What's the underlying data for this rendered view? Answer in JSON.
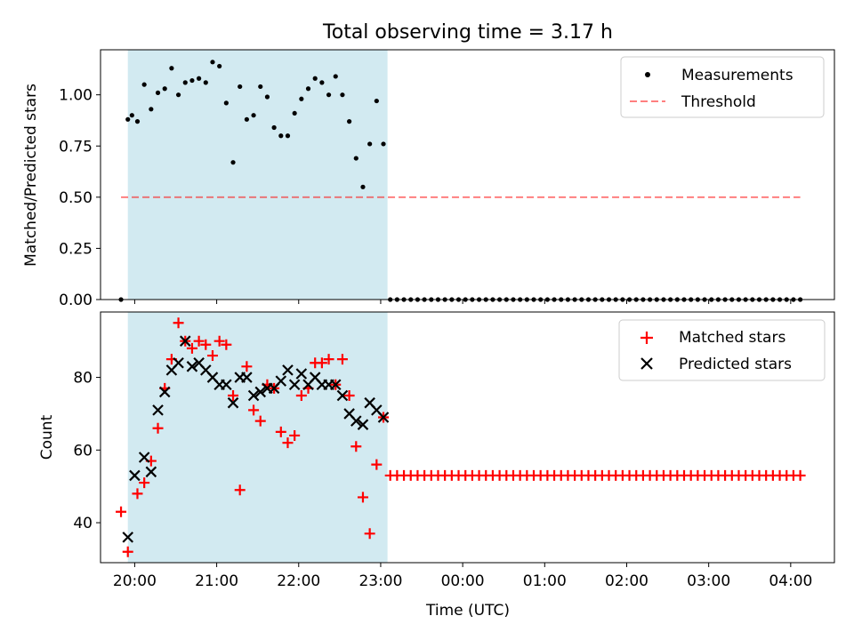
{
  "chart_data": [
    {
      "type": "scatter",
      "title": "Total observing time = 3.17 h",
      "xlabel": "",
      "ylabel": "Matched/Predicted stars",
      "xlim": [
        "19:35",
        "04:32"
      ],
      "ylim": [
        0.0,
        1.22
      ],
      "yticks": [
        "0.00",
        "0.25",
        "0.50",
        "0.75",
        "1.00"
      ],
      "yticks_values": [
        0.0,
        0.25,
        0.5,
        0.75,
        1.0
      ],
      "grid": false,
      "legend_position": "upper right",
      "shaded_region": {
        "x_start": "19:55",
        "x_end": "23:05",
        "color": "#add8e6"
      },
      "series": [
        {
          "name": "Measurements",
          "marker": "dot",
          "color": "#000000",
          "x": [
            "19:50",
            "19:55",
            "19:58",
            "20:02",
            "20:07",
            "20:12",
            "20:17",
            "20:22",
            "20:27",
            "20:32",
            "20:37",
            "20:42",
            "20:47",
            "20:52",
            "20:57",
            "21:02",
            "21:07",
            "21:12",
            "21:17",
            "21:22",
            "21:27",
            "21:32",
            "21:37",
            "21:42",
            "21:47",
            "21:52",
            "21:57",
            "22:02",
            "22:07",
            "22:12",
            "22:17",
            "22:22",
            "22:27",
            "22:32",
            "22:37",
            "22:42",
            "22:47",
            "22:52",
            "22:57",
            "23:02",
            "23:07"
          ],
          "y": [
            0.0,
            0.88,
            0.9,
            0.87,
            1.05,
            0.93,
            1.01,
            1.03,
            1.13,
            1.0,
            1.06,
            1.07,
            1.08,
            1.06,
            1.16,
            1.14,
            0.96,
            0.67,
            1.04,
            0.88,
            0.9,
            1.04,
            0.99,
            0.84,
            0.8,
            0.8,
            0.91,
            0.98,
            1.03,
            1.08,
            1.06,
            1.0,
            1.09,
            1.0,
            0.87,
            0.69,
            0.55,
            0.76,
            0.97,
            0.76,
            0.0
          ]
        },
        {
          "name": "Measurements (zero after 23:07)",
          "legend": false,
          "marker": "dot",
          "color": "#000000",
          "x_start": "23:12",
          "x_end": "04:07",
          "x_step_min": 5,
          "y_constant": 0.0
        },
        {
          "name": "Threshold",
          "style": "dashed",
          "color": "#ff0000",
          "alpha": 0.5,
          "x": [
            "19:50",
            "04:07"
          ],
          "y": [
            0.5,
            0.5
          ]
        }
      ]
    },
    {
      "type": "scatter",
      "title": "",
      "xlabel": "Time (UTC)",
      "ylabel": "Count",
      "xlim": [
        "19:35",
        "04:32"
      ],
      "ylim": [
        29,
        98
      ],
      "yticks": [
        "40",
        "60",
        "80"
      ],
      "yticks_values": [
        40,
        60,
        80
      ],
      "xticks": [
        "20:00",
        "21:00",
        "22:00",
        "23:00",
        "00:00",
        "01:00",
        "02:00",
        "03:00",
        "04:00"
      ],
      "grid": false,
      "legend_position": "upper right",
      "shaded_region": {
        "x_start": "19:55",
        "x_end": "23:05",
        "color": "#add8e6"
      },
      "series": [
        {
          "name": "Matched stars",
          "marker": "+",
          "color": "#ff0000",
          "x": [
            "19:50",
            "19:55",
            "20:02",
            "20:07",
            "20:12",
            "20:17",
            "20:22",
            "20:27",
            "20:32",
            "20:37",
            "20:42",
            "20:47",
            "20:52",
            "20:57",
            "21:02",
            "21:07",
            "21:12",
            "21:17",
            "21:22",
            "21:27",
            "21:32",
            "21:37",
            "21:42",
            "21:47",
            "21:52",
            "21:57",
            "22:02",
            "22:07",
            "22:12",
            "22:17",
            "22:22",
            "22:27",
            "22:32",
            "22:37",
            "22:42",
            "22:47",
            "22:52",
            "22:57",
            "23:02",
            "23:07"
          ],
          "y": [
            43,
            32,
            48,
            51,
            57,
            66,
            77,
            85,
            95,
            90,
            88,
            90,
            89,
            86,
            90,
            89,
            75,
            49,
            83,
            71,
            68,
            78,
            77,
            65,
            62,
            64,
            75,
            77,
            84,
            84,
            85,
            78,
            85,
            75,
            61,
            47,
            37,
            56,
            69,
            53
          ]
        },
        {
          "name": "Matched stars (constant after 23:07)",
          "legend": false,
          "marker": "+",
          "color": "#ff0000",
          "x_start": "23:12",
          "x_end": "04:07",
          "x_step_min": 5,
          "y_constant": 53
        },
        {
          "name": "Predicted stars",
          "marker": "x",
          "color": "#000000",
          "x": [
            "19:55",
            "20:00",
            "20:07",
            "20:12",
            "20:17",
            "20:22",
            "20:27",
            "20:32",
            "20:37",
            "20:42",
            "20:47",
            "20:52",
            "20:57",
            "21:02",
            "21:07",
            "21:12",
            "21:17",
            "21:22",
            "21:27",
            "21:32",
            "21:37",
            "21:42",
            "21:47",
            "21:52",
            "21:57",
            "22:02",
            "22:07",
            "22:12",
            "22:17",
            "22:22",
            "22:27",
            "22:32",
            "22:37",
            "22:42",
            "22:47",
            "22:52",
            "22:57",
            "23:02"
          ],
          "y": [
            36,
            53,
            58,
            54,
            71,
            76,
            82,
            84,
            90,
            83,
            84,
            82,
            80,
            78,
            78,
            73,
            80,
            80,
            75,
            76,
            77,
            77,
            79,
            82,
            78,
            81,
            78,
            80,
            78,
            78,
            78,
            75,
            70,
            68,
            67,
            73,
            71,
            69
          ]
        }
      ]
    }
  ]
}
